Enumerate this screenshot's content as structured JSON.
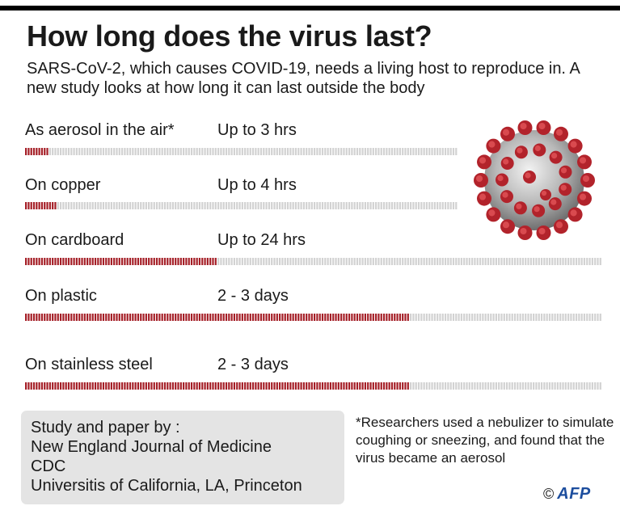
{
  "title": "How long does the virus last?",
  "subtitle": "SARS-CoV-2, which causes COVID-19, needs a living host to reproduce in. A new study looks at how long it can last outside the body",
  "chart_data": {
    "type": "bar",
    "unit_note": "Each full track represents 3 days (72 hours); filled portion shows how long the virus lasts",
    "max_hours": 72,
    "categories": [
      "As aerosol in the air*",
      "On copper",
      "On cardboard",
      "On plastic",
      "On stainless steel"
    ],
    "duration_labels": [
      "Up to 3 hrs",
      "Up to 4 hrs",
      "Up to 24 hrs",
      "2 - 3 days",
      "2 - 3 days"
    ],
    "values": [
      3,
      4,
      24,
      48,
      48
    ],
    "colors": {
      "filled": "#a51f27",
      "empty": "#d2d2d2"
    }
  },
  "sources": {
    "title": "Study and paper by :",
    "items": [
      "New England Journal of Medicine",
      "CDC",
      "Universitis of California, LA, Princeton"
    ]
  },
  "footnote": "*Researchers used a nebulizer to simulate coughing or sneezing, and found that the virus became an aerosol",
  "credit": {
    "copyright": "©",
    "agency": "AFP"
  },
  "illustration": {
    "icon": "coronavirus-icon"
  }
}
